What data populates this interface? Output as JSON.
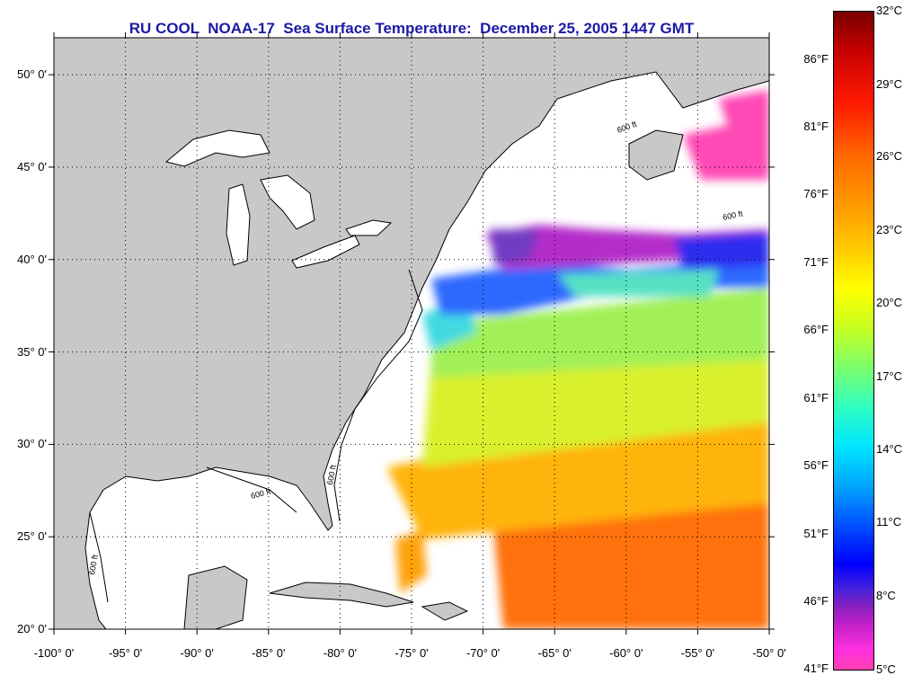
{
  "title": "RU COOL  NOAA-17  Sea Surface Temperature:  December 25, 2005 1447 GMT",
  "map": {
    "lon_range": [
      -100,
      -50
    ],
    "lat_range": [
      20,
      52
    ],
    "latitude_labels": [
      {
        "value": 50,
        "text": "50° 0'"
      },
      {
        "value": 45,
        "text": "45° 0'"
      },
      {
        "value": 40,
        "text": "40° 0'"
      },
      {
        "value": 35,
        "text": "35° 0'"
      },
      {
        "value": 30,
        "text": "30° 0'"
      },
      {
        "value": 25,
        "text": "25° 0'"
      },
      {
        "value": 20,
        "text": "20° 0'"
      }
    ],
    "longitude_labels": [
      {
        "value": -100,
        "text": "-100° 0'"
      },
      {
        "value": -95,
        "text": "-95° 0'"
      },
      {
        "value": -90,
        "text": "-90° 0'"
      },
      {
        "value": -85,
        "text": "-85° 0'"
      },
      {
        "value": -80,
        "text": "-80° 0'"
      },
      {
        "value": -75,
        "text": "-75° 0'"
      },
      {
        "value": -70,
        "text": "-70° 0'"
      },
      {
        "value": -65,
        "text": "-65° 0'"
      },
      {
        "value": -60,
        "text": "-60° 0'"
      },
      {
        "value": -55,
        "text": "-55° 0'"
      },
      {
        "value": -50,
        "text": "-50° 0'"
      }
    ],
    "isobath_label": "600 ft",
    "colors": {
      "land": "#c8c8c8",
      "ocean": "#ffffff",
      "title": "#1a1aa6"
    }
  },
  "colorbar": {
    "fahrenheit": [
      "86°F",
      "81°F",
      "76°F",
      "71°F",
      "66°F",
      "61°F",
      "56°F",
      "51°F",
      "46°F",
      "41°F"
    ],
    "celsius": [
      "32°C",
      "29°C",
      "26°C",
      "23°C",
      "20°C",
      "17°C",
      "14°C",
      "11°C",
      "8°C",
      "5°C"
    ]
  }
}
